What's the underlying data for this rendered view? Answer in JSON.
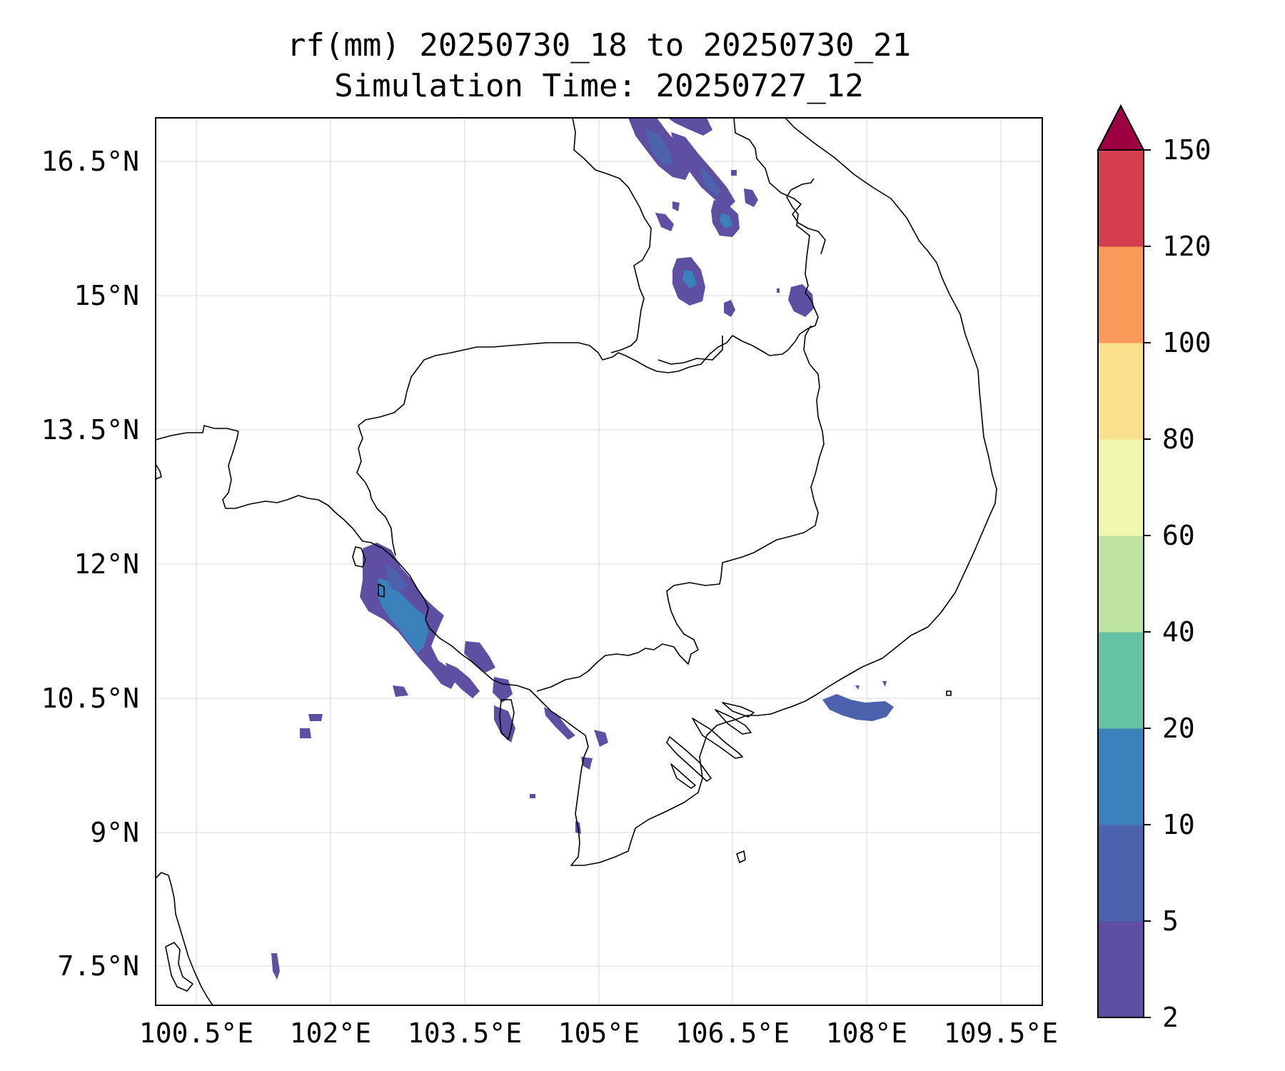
{
  "figure": {
    "title_line1": "rf(mm) 20250730_18 to 20250730_21",
    "title_line2": "Simulation Time: 20250727_12"
  },
  "map": {
    "type": "filled-contour precipitation map",
    "region": "Indochina (Cambodia, southern Vietnam, eastern Thailand, southern Laos)",
    "lon_ticks": [
      "100.5°E",
      "102°E",
      "103.5°E",
      "105°E",
      "106.5°E",
      "108°E",
      "109.5°E"
    ],
    "lat_ticks": [
      "16.5°N",
      "15°N",
      "13.5°N",
      "12°N",
      "10.5°N",
      "9°N",
      "7.5°N"
    ],
    "lon_range": [
      100.05,
      109.95
    ],
    "lat_range": [
      7.05,
      16.95
    ],
    "gridlines": true,
    "units": "mm"
  },
  "colorbar": {
    "levels": [
      "2",
      "5",
      "10",
      "20",
      "40",
      "60",
      "80",
      "100",
      "120",
      "150"
    ],
    "colors": [
      "#5e4fa2",
      "#4c62ad",
      "#3a80ba",
      "#66c2a5",
      "#bde3a0",
      "#f2f7af",
      "#fbe08d",
      "#f99a59",
      "#d53e4f"
    ],
    "extend_color": "#9e0142",
    "extend": "max"
  },
  "rain_features": [
    {
      "name": "gulf-of-thailand-coast-band",
      "lon": [
        101.8,
        103.6
      ],
      "lat": [
        10.6,
        12.2
      ],
      "max_class": "10-20"
    },
    {
      "name": "northern-laos-bands",
      "lon": [
        105.4,
        106.6
      ],
      "lat": [
        15.8,
        17.0
      ],
      "max_class": "10-20"
    },
    {
      "name": "southern-laos-cell",
      "lon": [
        106.0,
        106.4
      ],
      "lat": [
        15.1,
        15.5
      ],
      "max_class": "10-20"
    },
    {
      "name": "vietnam-southeast-coast",
      "lon": [
        107.6,
        108.3
      ],
      "lat": [
        10.2,
        10.5
      ],
      "max_class": "5-10"
    }
  ]
}
